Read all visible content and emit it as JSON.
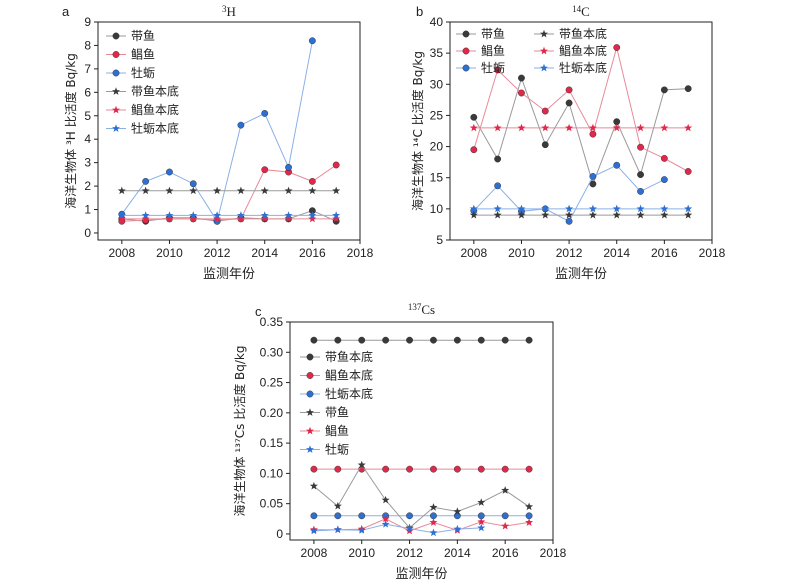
{
  "colors": {
    "black": "#3a3a3a",
    "red": "#e0284a",
    "blue": "#2d6fd3",
    "gray": "#9a9a9a",
    "pink": "#e88a9a",
    "lightblue": "#8ab0e6"
  },
  "chart_data": [
    {
      "panel": "a",
      "type": "line",
      "title_sup": "3",
      "title_main": "H",
      "xlabel": "监测年份",
      "ylabel": "海洋生物体 ³H 比活度 Bq/kg",
      "xlim": [
        2007,
        2018
      ],
      "ylim": [
        -0.3,
        9
      ],
      "xticks": [
        2008,
        2010,
        2012,
        2014,
        2016,
        2018
      ],
      "yticks": [
        0,
        1,
        2,
        3,
        4,
        5,
        6,
        7,
        8,
        9
      ],
      "series": [
        {
          "name": "带鱼",
          "marker": "circle",
          "color": "black",
          "line": "gray",
          "x": [
            2008,
            2009,
            2010,
            2011,
            2012,
            2013,
            2014,
            2015,
            2016,
            2017
          ],
          "y": [
            0.6,
            0.5,
            0.65,
            0.65,
            0.5,
            0.65,
            0.6,
            0.6,
            0.95,
            0.5
          ]
        },
        {
          "name": "鲳鱼",
          "marker": "circle",
          "color": "red",
          "line": "pink",
          "x": [
            2008,
            2009,
            2010,
            2011,
            2012,
            2013,
            2014,
            2015,
            2016,
            2017
          ],
          "y": [
            0.5,
            0.55,
            0.6,
            0.6,
            0.55,
            0.6,
            2.7,
            2.6,
            2.2,
            2.9
          ]
        },
        {
          "name": "牡蛎",
          "marker": "circle",
          "color": "blue",
          "line": "lightblue",
          "x": [
            2008,
            2009,
            2010,
            2011,
            2012,
            2013,
            2014,
            2015,
            2016
          ],
          "y": [
            0.8,
            2.2,
            2.6,
            2.1,
            0.5,
            4.6,
            5.1,
            2.8,
            8.2
          ]
        },
        {
          "name": "带鱼本底",
          "marker": "star",
          "color": "black",
          "line": "gray",
          "x": [
            2008,
            2009,
            2010,
            2011,
            2012,
            2013,
            2014,
            2015,
            2016,
            2017
          ],
          "y": [
            1.8,
            1.8,
            1.8,
            1.8,
            1.8,
            1.8,
            1.8,
            1.8,
            1.8,
            1.8
          ]
        },
        {
          "name": "鲳鱼本底",
          "marker": "star",
          "color": "red",
          "line": "pink",
          "x": [
            2008,
            2009,
            2010,
            2011,
            2012,
            2013,
            2014,
            2015,
            2016,
            2017
          ],
          "y": [
            0.6,
            0.6,
            0.6,
            0.6,
            0.6,
            0.6,
            0.6,
            0.6,
            0.6,
            0.6
          ]
        },
        {
          "name": "牡蛎本底",
          "marker": "star",
          "color": "blue",
          "line": "lightblue",
          "x": [
            2008,
            2009,
            2010,
            2011,
            2012,
            2013,
            2014,
            2015,
            2016,
            2017
          ],
          "y": [
            0.75,
            0.75,
            0.75,
            0.75,
            0.75,
            0.75,
            0.75,
            0.75,
            0.75,
            0.75
          ]
        }
      ]
    },
    {
      "panel": "b",
      "type": "line",
      "title_sup": "14",
      "title_main": "C",
      "xlabel": "监测年份",
      "ylabel": "海洋生物体 ¹⁴C 比活度 Bq/kg",
      "xlim": [
        2007,
        2018
      ],
      "ylim": [
        5,
        40
      ],
      "xticks": [
        2008,
        2010,
        2012,
        2014,
        2016,
        2018
      ],
      "yticks": [
        5,
        10,
        15,
        20,
        25,
        30,
        35,
        40
      ],
      "series": [
        {
          "name": "带鱼",
          "marker": "circle",
          "color": "black",
          "line": "gray",
          "x": [
            2008,
            2009,
            2010,
            2011,
            2012,
            2013,
            2014,
            2015,
            2016,
            2017
          ],
          "y": [
            24.7,
            18.0,
            31.0,
            20.3,
            27.0,
            14.0,
            24.0,
            15.5,
            29.1,
            29.3
          ]
        },
        {
          "name": "鲳鱼",
          "marker": "circle",
          "color": "red",
          "line": "pink",
          "x": [
            2008,
            2009,
            2010,
            2011,
            2012,
            2013,
            2014,
            2015,
            2016,
            2017
          ],
          "y": [
            19.5,
            32.3,
            28.6,
            25.7,
            29.1,
            22.0,
            35.9,
            19.9,
            18.1,
            16.0
          ]
        },
        {
          "name": "牡蛎",
          "marker": "circle",
          "color": "blue",
          "line": "lightblue",
          "x": [
            2008,
            2009,
            2010,
            2011,
            2012,
            2013,
            2014,
            2015,
            2016
          ],
          "y": [
            9.7,
            13.7,
            9.6,
            10.0,
            8.0,
            15.2,
            17.0,
            12.8,
            14.7
          ]
        },
        {
          "name": "带鱼本底",
          "marker": "star",
          "color": "black",
          "line": "gray",
          "x": [
            2008,
            2009,
            2010,
            2011,
            2012,
            2013,
            2014,
            2015,
            2016,
            2017
          ],
          "y": [
            9.0,
            9.0,
            9.0,
            9.0,
            9.0,
            9.0,
            9.0,
            9.0,
            9.0,
            9.0
          ]
        },
        {
          "name": "鲳鱼本底",
          "marker": "star",
          "color": "red",
          "line": "pink",
          "x": [
            2008,
            2009,
            2010,
            2011,
            2012,
            2013,
            2014,
            2015,
            2016,
            2017
          ],
          "y": [
            23.0,
            23.0,
            23.0,
            23.0,
            23.0,
            23.0,
            23.0,
            23.0,
            23.0,
            23.0
          ]
        },
        {
          "name": "牡蛎本底",
          "marker": "star",
          "color": "blue",
          "line": "lightblue",
          "x": [
            2008,
            2009,
            2010,
            2011,
            2012,
            2013,
            2014,
            2015,
            2016,
            2017
          ],
          "y": [
            10.0,
            10.0,
            10.0,
            10.0,
            10.0,
            10.0,
            10.0,
            10.0,
            10.0,
            10.0
          ]
        }
      ]
    },
    {
      "panel": "c",
      "type": "line",
      "title_sup": "137",
      "title_main": "Cs",
      "xlabel": "监测年份",
      "ylabel": "海洋生物体 ¹³⁷Cs 比活度 Bq/kg",
      "xlim": [
        2007,
        2018
      ],
      "ylim": [
        -0.01,
        0.35
      ],
      "xticks": [
        2008,
        2010,
        2012,
        2014,
        2016,
        2018
      ],
      "yticks": [
        0,
        0.05,
        0.1,
        0.15,
        0.2,
        0.25,
        0.3,
        0.35
      ],
      "ytick_labels": [
        "0",
        "0.05",
        "0.10",
        "0.15",
        "0.20",
        "0.25",
        "0.30",
        "0.35"
      ],
      "series": [
        {
          "name": "带鱼本底",
          "marker": "circle",
          "color": "black",
          "line": "gray",
          "x": [
            2008,
            2009,
            2010,
            2011,
            2012,
            2013,
            2014,
            2015,
            2016,
            2017
          ],
          "y": [
            0.32,
            0.32,
            0.32,
            0.32,
            0.32,
            0.32,
            0.32,
            0.32,
            0.32,
            0.32
          ]
        },
        {
          "name": "鲳鱼本底",
          "marker": "circle",
          "color": "red",
          "line": "pink",
          "x": [
            2008,
            2009,
            2010,
            2011,
            2012,
            2013,
            2014,
            2015,
            2016,
            2017
          ],
          "y": [
            0.107,
            0.107,
            0.107,
            0.107,
            0.107,
            0.107,
            0.107,
            0.107,
            0.107,
            0.107
          ]
        },
        {
          "name": "牡蛎本底",
          "marker": "circle",
          "color": "blue",
          "line": "lightblue",
          "x": [
            2008,
            2009,
            2010,
            2011,
            2012,
            2013,
            2014,
            2015,
            2016,
            2017
          ],
          "y": [
            0.03,
            0.03,
            0.03,
            0.03,
            0.03,
            0.03,
            0.03,
            0.03,
            0.03,
            0.03
          ]
        },
        {
          "name": "带鱼",
          "marker": "star",
          "color": "black",
          "line": "gray",
          "x": [
            2008,
            2009,
            2010,
            2011,
            2012,
            2013,
            2014,
            2015,
            2016,
            2017
          ],
          "y": [
            0.079,
            0.046,
            0.114,
            0.056,
            0.01,
            0.044,
            0.037,
            0.052,
            0.072,
            0.045
          ]
        },
        {
          "name": "鲳鱼",
          "marker": "star",
          "color": "red",
          "line": "pink",
          "x": [
            2008,
            2009,
            2010,
            2011,
            2012,
            2013,
            2014,
            2015,
            2016,
            2017
          ],
          "y": [
            0.007,
            0.007,
            0.008,
            0.025,
            0.005,
            0.019,
            0.006,
            0.02,
            0.013,
            0.019
          ]
        },
        {
          "name": "牡蛎",
          "marker": "star",
          "color": "blue",
          "line": "lightblue",
          "x": [
            2008,
            2009,
            2010,
            2011,
            2012,
            2013,
            2014,
            2015
          ],
          "y": [
            0.005,
            0.007,
            0.006,
            0.016,
            0.009,
            0.002,
            0.008,
            0.01
          ]
        }
      ]
    }
  ]
}
